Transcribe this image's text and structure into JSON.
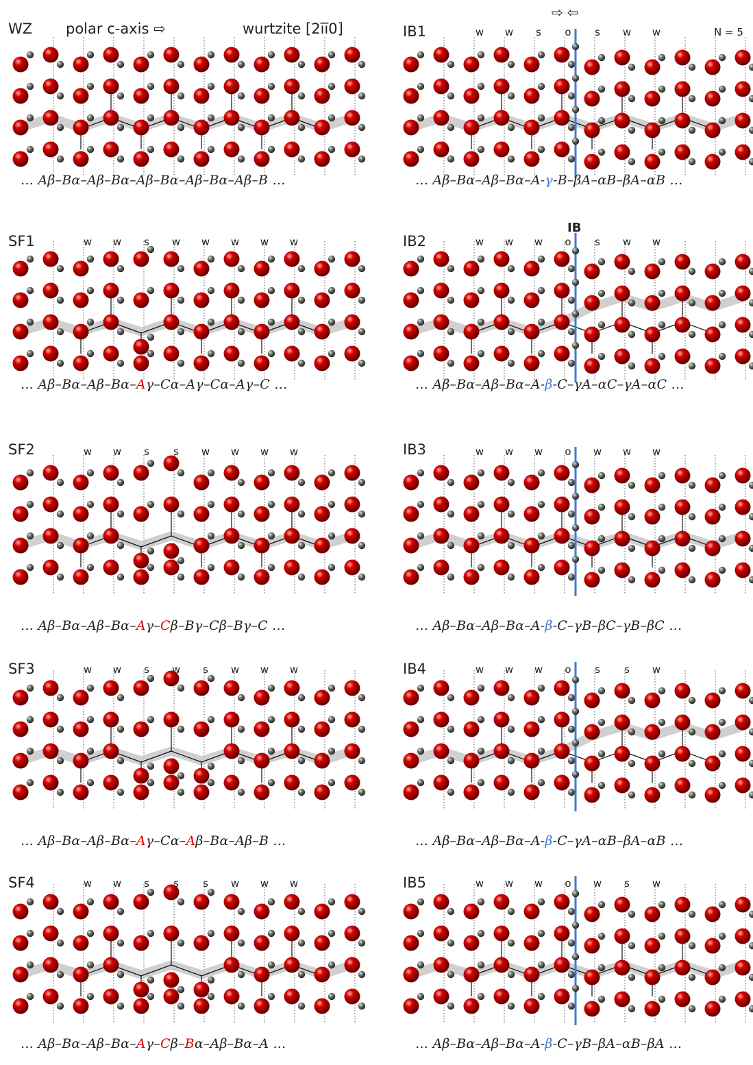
{
  "header": {
    "polar": "polar c-axis ⇨",
    "wurtzite": "wurtzite [2īī0]",
    "n_label": "N = 5",
    "arrows": "⇨⇦",
    "ib_label": "IB"
  },
  "panels": {
    "wz": {
      "label": "WZ",
      "codes": [],
      "seq": "… Aβ–Bα–Aβ–Bα–Aβ–Bα–Aβ–Bα–Aβ–B …"
    },
    "sf1": {
      "label": "SF1",
      "codes": [
        "w",
        "w",
        "s",
        "w",
        "w",
        "w",
        "w",
        "w"
      ],
      "seq_a": "… Aβ–Bα–Aβ–Bα–",
      "seq_r": "A",
      "seq_b": "γ–Cα–Aγ–Cα–Aγ–C …"
    },
    "sf2": {
      "label": "SF2",
      "codes": [
        "w",
        "w",
        "s",
        "s",
        "w",
        "w",
        "w",
        "w"
      ],
      "seq_a": "… Aβ–Bα–Aβ–Bα–",
      "seq_r1": "A",
      "seq_m": "γ–",
      "seq_r2": "C",
      "seq_b": "β–Bγ–Cβ–Bγ–C …"
    },
    "sf3": {
      "label": "SF3",
      "codes": [
        "w",
        "w",
        "s",
        "w",
        "s",
        "w",
        "w",
        "w"
      ],
      "seq_a": "… Aβ–Bα–Aβ–Bα–",
      "seq_r1": "A",
      "seq_m": "γ–Cα–",
      "seq_r2": "A",
      "seq_b": "β–Bα–Aβ–B …"
    },
    "sf4": {
      "label": "SF4",
      "codes": [
        "w",
        "w",
        "s",
        "s",
        "s",
        "w",
        "w",
        "w"
      ],
      "seq_a": "… Aβ–Bα–Aβ–Bα–",
      "seq_r1": "A",
      "seq_m1": "γ–",
      "seq_r2": "C",
      "seq_m2": "β–",
      "seq_r3": "B",
      "seq_b": "α–Aβ–Bα–A …"
    },
    "ib1": {
      "label": "IB1",
      "codes": [
        "w",
        "w",
        "s",
        "o",
        "s",
        "w",
        "w"
      ],
      "seq_a": "… Aβ–Bα–Aβ–Bα–A-",
      "seq_c": "γ",
      "seq_b": "-B–βA–αB–βA–αB …"
    },
    "ib2": {
      "label": "IB2",
      "codes": [
        "w",
        "w",
        "w",
        "o",
        "s",
        "w",
        "w"
      ],
      "seq_a": "… Aβ–Bα–Aβ–Bα–A-",
      "seq_c": "β",
      "seq_b": "-C–γA–αC–γA–αC …"
    },
    "ib3": {
      "label": "IB3",
      "codes": [
        "w",
        "w",
        "w",
        "o",
        "w",
        "w",
        "w"
      ],
      "seq_a": "… Aβ–Bα–Aβ–Bα–A-",
      "seq_c": "β",
      "seq_b": "-C–γB–βC–γB–βC …"
    },
    "ib4": {
      "label": "IB4",
      "codes": [
        "w",
        "w",
        "w",
        "o",
        "s",
        "s",
        "w"
      ],
      "seq_a": "… Aβ–Bα–Aβ–Bα–A-",
      "seq_c": "β",
      "seq_b": "-C–γA–αB–βA–αB …"
    },
    "ib5": {
      "label": "IB5",
      "codes": [
        "w",
        "w",
        "w",
        "o",
        "w",
        "s",
        "w"
      ],
      "seq_a": "… Aβ–Bα–Aβ–Bα–A-",
      "seq_c": "β",
      "seq_b": "-C–γB–βA–αB–βA …"
    }
  },
  "colors": {
    "oxygen": "#d40000",
    "zinc": "#6e6e6a",
    "boundary": "#3f7bd6",
    "highlight": "#e00000"
  }
}
